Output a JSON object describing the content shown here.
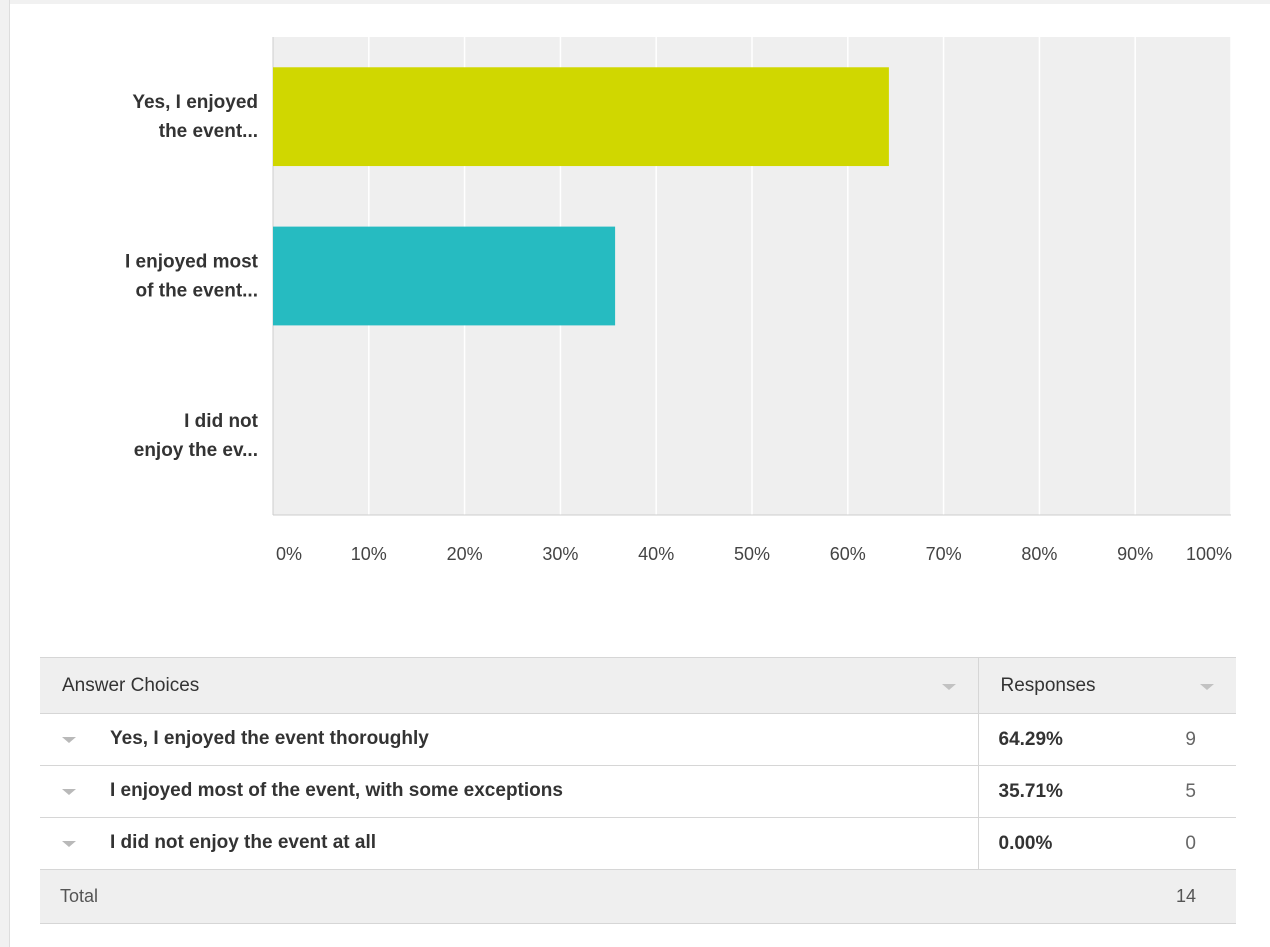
{
  "chart_data": {
    "type": "bar",
    "orientation": "horizontal",
    "categories": [
      [
        "Yes, I enjoyed",
        "the event..."
      ],
      [
        "I enjoyed most",
        "of the event..."
      ],
      [
        "I did not",
        "enjoy the ev..."
      ]
    ],
    "values": [
      64.29,
      35.71,
      0.0
    ],
    "colors": [
      "#d0d700",
      "#26bbc1",
      "#9aa0a6"
    ],
    "xlim": [
      0,
      100
    ],
    "x_ticks": [
      "0%",
      "10%",
      "20%",
      "30%",
      "40%",
      "50%",
      "60%",
      "70%",
      "80%",
      "90%",
      "100%"
    ],
    "grid": true,
    "background": "#efefef"
  },
  "table": {
    "header": {
      "choices": "Answer Choices",
      "responses": "Responses"
    },
    "rows": [
      {
        "label": "Yes, I enjoyed the event thoroughly",
        "percent": "64.29%",
        "count": "9"
      },
      {
        "label": "I enjoyed most of the event, with some exceptions",
        "percent": "35.71%",
        "count": "5"
      },
      {
        "label": "I did not enjoy the event at all",
        "percent": "0.00%",
        "count": "0"
      }
    ],
    "total": {
      "label": "Total",
      "count": "14"
    }
  }
}
